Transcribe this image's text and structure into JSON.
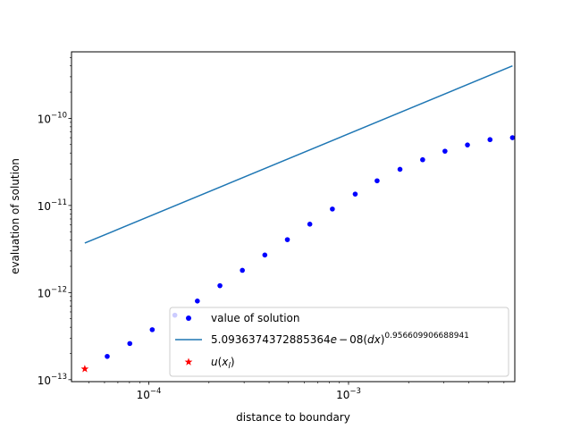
{
  "chart_data": {
    "type": "scatter",
    "xlabel": "distance to boundary",
    "ylabel": "evaluation of solution",
    "xscale": "log",
    "yscale": "log",
    "xlim": [
      4.1e-05,
      0.0068
    ],
    "ylim": [
      9.5e-14,
      5.8e-10
    ],
    "x_tick_labels": [
      {
        "value": 0.0001,
        "base": "10",
        "exp": "−4"
      },
      {
        "value": 0.001,
        "base": "10",
        "exp": "−3"
      }
    ],
    "y_tick_labels": [
      {
        "value": 1e-13,
        "base": "10",
        "exp": "−13"
      },
      {
        "value": 1e-12,
        "base": "10",
        "exp": "−12"
      },
      {
        "value": 1e-11,
        "base": "10",
        "exp": "−11"
      },
      {
        "value": 1e-10,
        "base": "10",
        "exp": "−10"
      }
    ],
    "grid": false,
    "legend_position": "lower-right",
    "series": [
      {
        "name": "value of solution",
        "kind": "points",
        "marker": "dot",
        "color": "#0000ff",
        "points": [
          [
            6.19e-05,
            1.85e-13
          ],
          [
            8.03e-05,
            2.6e-13
          ],
          [
            0.000104,
            3.75e-13
          ],
          [
            0.000135,
            5.5e-13
          ],
          [
            0.000175,
            8e-13
          ],
          [
            0.000227,
            1.2e-12
          ],
          [
            0.000294,
            1.8e-12
          ],
          [
            0.000381,
            2.7e-12
          ],
          [
            0.000494,
            4.05e-12
          ],
          [
            0.00064,
            6.1e-12
          ],
          [
            0.00083,
            9.1e-12
          ],
          [
            0.00108,
            1.35e-11
          ],
          [
            0.00139,
            1.92e-11
          ],
          [
            0.00181,
            2.6e-11
          ],
          [
            0.00235,
            3.35e-11
          ],
          [
            0.00304,
            4.2e-11
          ],
          [
            0.00394,
            4.95e-11
          ],
          [
            0.00511,
            5.7e-11
          ],
          [
            0.00662,
            6e-11
          ]
        ]
      },
      {
        "name_prefix": "5.0936374372885364",
        "name_e": "e",
        "name_minus1": "−",
        "name_mid": "08(",
        "name_dx": "dx",
        "name_close": ")",
        "name_power": "0.956609906688941",
        "kind": "line",
        "color": "#1f77b4",
        "points": [
          [
            4.78e-05,
            3.7e-12
          ],
          [
            0.00662,
            4e-10
          ]
        ]
      },
      {
        "name_u": "u",
        "name_open": "(",
        "name_x": "x",
        "name_sub": "l",
        "name_close": ")",
        "kind": "points",
        "marker": "star",
        "color": "#ff0000",
        "points": [
          [
            4.78e-05,
            1.33e-13
          ]
        ]
      }
    ]
  }
}
